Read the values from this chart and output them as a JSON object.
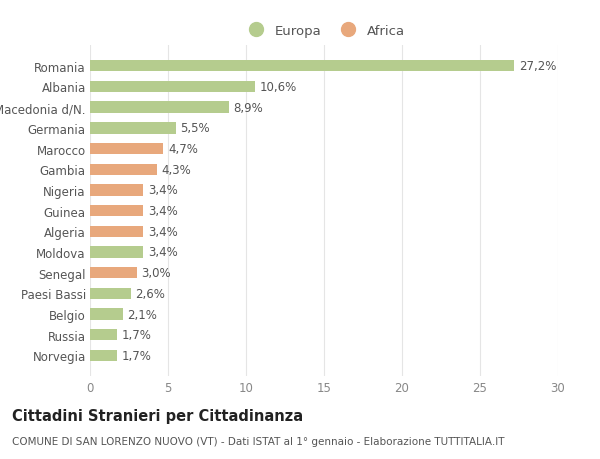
{
  "categories": [
    "Norvegia",
    "Russia",
    "Belgio",
    "Paesi Bassi",
    "Senegal",
    "Moldova",
    "Algeria",
    "Guinea",
    "Nigeria",
    "Gambia",
    "Marocco",
    "Germania",
    "Macedonia d/N.",
    "Albania",
    "Romania"
  ],
  "values": [
    1.7,
    1.7,
    2.1,
    2.6,
    3.0,
    3.4,
    3.4,
    3.4,
    3.4,
    4.3,
    4.7,
    5.5,
    8.9,
    10.6,
    27.2
  ],
  "colors": [
    "#b5cc8e",
    "#b5cc8e",
    "#b5cc8e",
    "#b5cc8e",
    "#e8a87c",
    "#b5cc8e",
    "#e8a87c",
    "#e8a87c",
    "#e8a87c",
    "#e8a87c",
    "#e8a87c",
    "#b5cc8e",
    "#b5cc8e",
    "#b5cc8e",
    "#b5cc8e"
  ],
  "labels": [
    "1,7%",
    "1,7%",
    "2,1%",
    "2,6%",
    "3,0%",
    "3,4%",
    "3,4%",
    "3,4%",
    "3,4%",
    "4,3%",
    "4,7%",
    "5,5%",
    "8,9%",
    "10,6%",
    "27,2%"
  ],
  "legend_europa_color": "#b5cc8e",
  "legend_africa_color": "#e8a87c",
  "legend_europa_label": "Europa",
  "legend_africa_label": "Africa",
  "xlim": [
    0,
    30
  ],
  "xticks": [
    0,
    5,
    10,
    15,
    20,
    25,
    30
  ],
  "title_bold": "Cittadini Stranieri per Cittadinanza",
  "subtitle": "COMUNE DI SAN LORENZO NUOVO (VT) - Dati ISTAT al 1° gennaio - Elaborazione TUTTITALIA.IT",
  "background_color": "#ffffff",
  "grid_color": "#e5e5e5",
  "bar_height": 0.55,
  "label_fontsize": 8.5,
  "tick_fontsize": 8.5,
  "title_fontsize": 10.5,
  "subtitle_fontsize": 7.5
}
